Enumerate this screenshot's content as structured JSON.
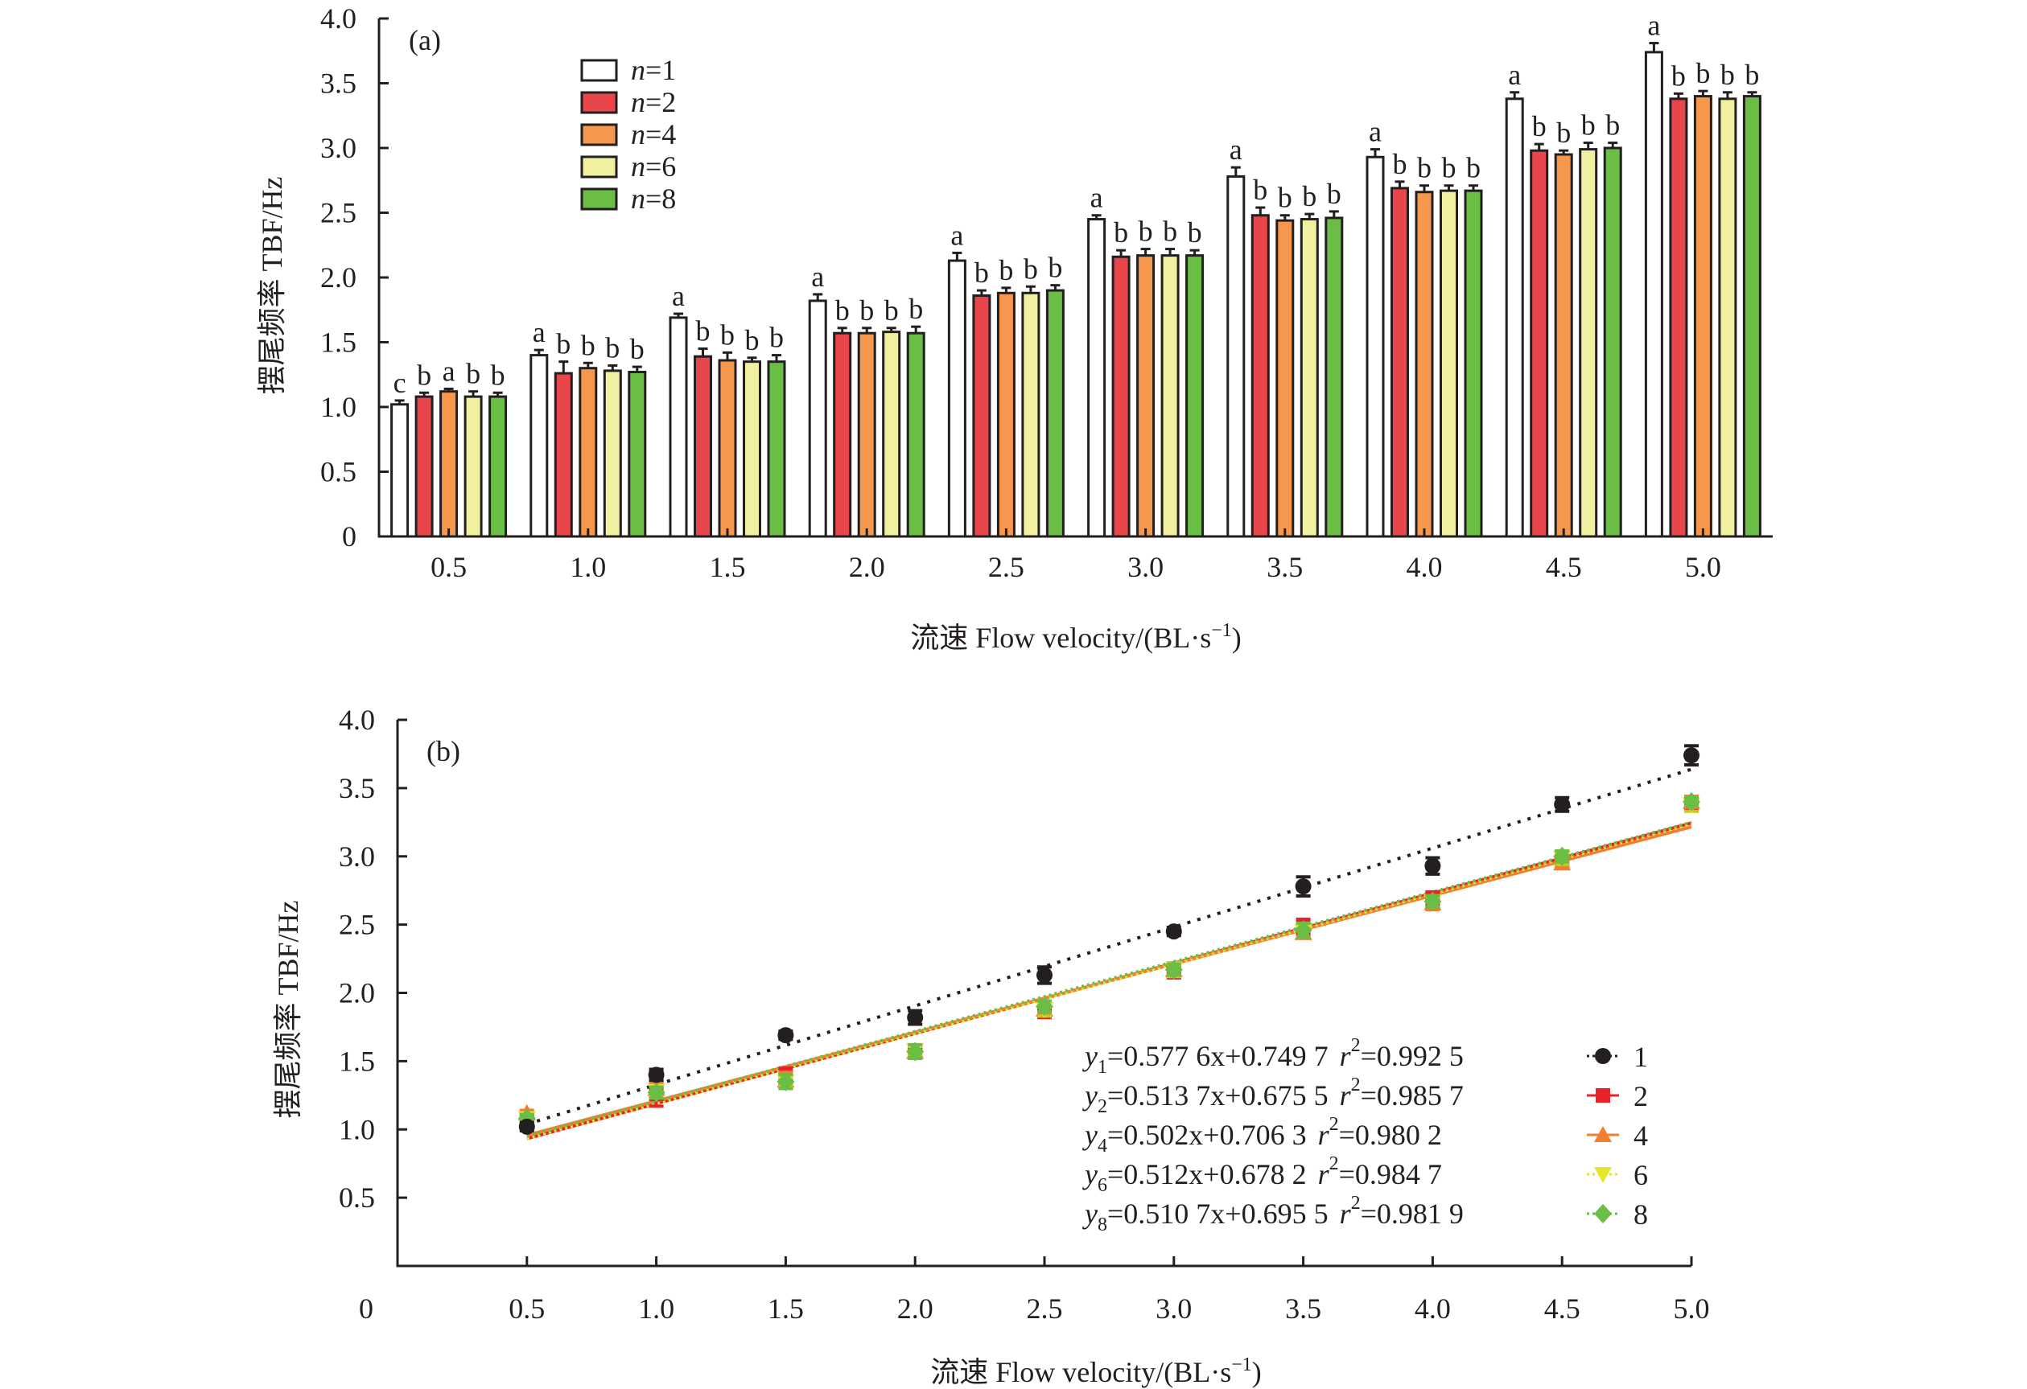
{
  "chart_data": [
    {
      "panel_label": "(a)",
      "type": "bar",
      "title": "",
      "xlabel": "流速 Flow velocity/(BL·s⁻¹)",
      "xlabel_parts": {
        "main": "流速 Flow velocity/(BL·s",
        "sup": "−1",
        "end": ")"
      },
      "ylabel": "摆尾频率 TBF/Hz",
      "ylim": [
        0,
        4.0
      ],
      "yticks": [
        "0",
        "0.5",
        "1.0",
        "1.5",
        "2.0",
        "2.5",
        "3.0",
        "3.5",
        "4.0"
      ],
      "ytick_values": [
        0,
        0.5,
        1.0,
        1.5,
        2.0,
        2.5,
        3.0,
        3.5,
        4.0
      ],
      "categories": [
        "0.5",
        "1.0",
        "1.5",
        "2.0",
        "2.5",
        "3.0",
        "3.5",
        "4.0",
        "4.5",
        "5.0"
      ],
      "legend_position": "top-left",
      "grid": false,
      "series": [
        {
          "name": "n=1",
          "n_label": "n",
          "n_value": "=1",
          "color": "#ffffff",
          "values": [
            1.02,
            1.4,
            1.69,
            1.82,
            2.13,
            2.45,
            2.78,
            2.93,
            3.38,
            3.74
          ],
          "errors": [
            0.03,
            0.04,
            0.03,
            0.05,
            0.06,
            0.03,
            0.07,
            0.06,
            0.05,
            0.07
          ],
          "letters": [
            "c",
            "a",
            "a",
            "a",
            "a",
            "a",
            "a",
            "a",
            "a",
            "a"
          ]
        },
        {
          "name": "n=2",
          "n_label": "n",
          "n_value": "=2",
          "color": "#e8464b",
          "values": [
            1.08,
            1.26,
            1.39,
            1.57,
            1.86,
            2.16,
            2.48,
            2.69,
            2.98,
            3.38
          ],
          "errors": [
            0.03,
            0.09,
            0.06,
            0.04,
            0.04,
            0.05,
            0.06,
            0.05,
            0.05,
            0.04
          ],
          "letters": [
            "b",
            "b",
            "b",
            "b",
            "b",
            "b",
            "b",
            "b",
            "b",
            "b"
          ]
        },
        {
          "name": "n=4",
          "n_label": "n",
          "n_value": "=4",
          "color": "#f5984d",
          "values": [
            1.12,
            1.3,
            1.36,
            1.57,
            1.88,
            2.17,
            2.44,
            2.66,
            2.95,
            3.4
          ],
          "errors": [
            0.02,
            0.04,
            0.06,
            0.04,
            0.04,
            0.05,
            0.04,
            0.05,
            0.03,
            0.04
          ],
          "letters": [
            "a",
            "b",
            "b",
            "b",
            "b",
            "b",
            "b",
            "b",
            "b",
            "b"
          ]
        },
        {
          "name": "n=6",
          "n_label": "n",
          "n_value": "=6",
          "color": "#f0f0a0",
          "values": [
            1.08,
            1.28,
            1.35,
            1.58,
            1.88,
            2.17,
            2.45,
            2.67,
            2.99,
            3.38
          ],
          "errors": [
            0.04,
            0.04,
            0.03,
            0.03,
            0.05,
            0.05,
            0.04,
            0.04,
            0.05,
            0.05
          ],
          "letters": [
            "b",
            "b",
            "b",
            "b",
            "b",
            "b",
            "b",
            "b",
            "b",
            "b"
          ]
        },
        {
          "name": "n=8",
          "n_label": "n",
          "n_value": "=8",
          "color": "#6abd45",
          "values": [
            1.08,
            1.27,
            1.35,
            1.57,
            1.9,
            2.17,
            2.46,
            2.67,
            3.0,
            3.4
          ],
          "errors": [
            0.03,
            0.04,
            0.05,
            0.05,
            0.04,
            0.04,
            0.05,
            0.04,
            0.04,
            0.03
          ],
          "letters": [
            "b",
            "b",
            "b",
            "b",
            "b",
            "b",
            "b",
            "b",
            "b",
            "b"
          ]
        }
      ]
    },
    {
      "panel_label": "(b)",
      "type": "scatter",
      "title": "",
      "xlabel": "流速 Flow velocity/(BL·s⁻¹)",
      "xlabel_parts": {
        "main": "流速 Flow velocity/(BL·s",
        "sup": "−1",
        "end": ")"
      },
      "ylabel": "摆尾频率 TBF/Hz",
      "xlim": [
        0,
        5.0
      ],
      "ylim": [
        0,
        4.0
      ],
      "xticks": [
        "0",
        "0.5",
        "1.0",
        "1.5",
        "2.0",
        "2.5",
        "3.0",
        "3.5",
        "4.0",
        "4.5",
        "5.0"
      ],
      "xtick_values": [
        0,
        0.5,
        1.0,
        1.5,
        2.0,
        2.5,
        3.0,
        3.5,
        4.0,
        4.5,
        5.0
      ],
      "yticks": [
        "0.5",
        "1.0",
        "1.5",
        "2.0",
        "2.5",
        "3.0",
        "3.5",
        "4.0"
      ],
      "ytick_values": [
        0.5,
        1.0,
        1.5,
        2.0,
        2.5,
        3.0,
        3.5,
        4.0
      ],
      "x": [
        0.5,
        1.0,
        1.5,
        2.0,
        2.5,
        3.0,
        3.5,
        4.0,
        4.5,
        5.0
      ],
      "legend_position": "bottom-right",
      "grid": false,
      "series": [
        {
          "name": "1",
          "marker": "circle",
          "color": "#231f20",
          "line_style": "dotted",
          "values": [
            1.02,
            1.4,
            1.69,
            1.82,
            2.13,
            2.45,
            2.78,
            2.93,
            3.38,
            3.74
          ],
          "errors": [
            0.03,
            0.04,
            0.03,
            0.05,
            0.06,
            0.03,
            0.07,
            0.06,
            0.05,
            0.07
          ],
          "fit": {
            "slope": 0.5776,
            "intercept": 0.7497,
            "r2": 0.9925
          },
          "equation": {
            "y": "y",
            "sub": "1",
            "rhs": "=0.577 6x+0.749 7",
            "r": "r",
            "sup": "2",
            "r2": "=0.992 5"
          }
        },
        {
          "name": "2",
          "marker": "square",
          "color": "#e8232a",
          "line_style": "solid",
          "values": [
            1.08,
            1.26,
            1.39,
            1.57,
            1.86,
            2.16,
            2.48,
            2.69,
            2.98,
            3.38
          ],
          "errors": [
            0.03,
            0.09,
            0.06,
            0.04,
            0.04,
            0.05,
            0.06,
            0.05,
            0.05,
            0.04
          ],
          "fit": {
            "slope": 0.5137,
            "intercept": 0.6755,
            "r2": 0.9857
          },
          "equation": {
            "y": "y",
            "sub": "2",
            "rhs": "=0.513 7x+0.675 5",
            "r": "r",
            "sup": "2",
            "r2": "=0.985 7"
          }
        },
        {
          "name": "4",
          "marker": "triangle-up",
          "color": "#f47d30",
          "line_style": "solid",
          "values": [
            1.12,
            1.3,
            1.36,
            1.57,
            1.88,
            2.17,
            2.44,
            2.66,
            2.95,
            3.4
          ],
          "errors": [
            0.02,
            0.04,
            0.06,
            0.04,
            0.04,
            0.05,
            0.04,
            0.05,
            0.03,
            0.04
          ],
          "fit": {
            "slope": 0.502,
            "intercept": 0.7063,
            "r2": 0.9802
          },
          "equation": {
            "y": "y",
            "sub": "4",
            "rhs": "=0.502x+0.706 3",
            "r": "r",
            "sup": "2",
            "r2": "=0.980 2"
          }
        },
        {
          "name": "6",
          "marker": "triangle-down",
          "color": "#e5e52a",
          "line_style": "dotted",
          "values": [
            1.08,
            1.28,
            1.35,
            1.58,
            1.88,
            2.17,
            2.45,
            2.67,
            2.99,
            3.38
          ],
          "errors": [
            0.04,
            0.04,
            0.03,
            0.03,
            0.05,
            0.05,
            0.04,
            0.04,
            0.05,
            0.05
          ],
          "fit": {
            "slope": 0.512,
            "intercept": 0.6782,
            "r2": 0.9847
          },
          "equation": {
            "y": "y",
            "sub": "6",
            "rhs": "=0.512x+0.678 2",
            "r": "r",
            "sup": "2",
            "r2": "=0.984 7"
          }
        },
        {
          "name": "8",
          "marker": "diamond",
          "color": "#6abd45",
          "line_style": "dotted",
          "values": [
            1.08,
            1.27,
            1.35,
            1.57,
            1.9,
            2.17,
            2.46,
            2.67,
            3.0,
            3.4
          ],
          "errors": [
            0.03,
            0.04,
            0.05,
            0.05,
            0.04,
            0.04,
            0.05,
            0.04,
            0.04,
            0.03
          ],
          "fit": {
            "slope": 0.5107,
            "intercept": 0.6955,
            "r2": 0.9819
          },
          "equation": {
            "y": "y",
            "sub": "8",
            "rhs": "=0.510 7x+0.695 5",
            "r": "r",
            "sup": "2",
            "r2": "=0.981 9"
          }
        }
      ]
    }
  ]
}
